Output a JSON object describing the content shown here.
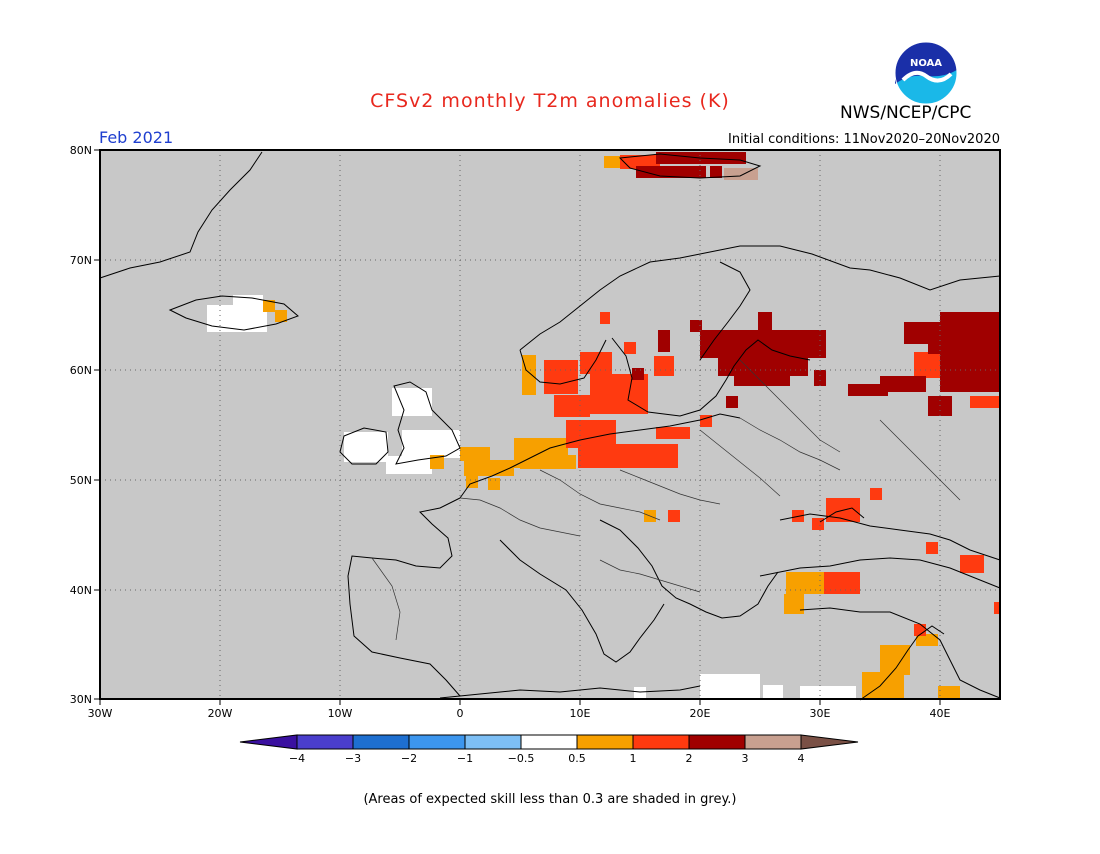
{
  "header": {
    "title": "CFSv2 monthly T2m anomalies (K)",
    "org": "NWS/NCEP/CPC",
    "logo_text": "NOAA",
    "valid_month": "Feb 2021",
    "initial_conditions": "Initial conditions: 11Nov2020–20Nov2020"
  },
  "map": {
    "lon_range": [
      -30,
      45
    ],
    "lat_range": [
      30,
      80
    ],
    "lat_labels": [
      "80N",
      "70N",
      "60N",
      "50N",
      "40N",
      "30N"
    ],
    "lon_labels": [
      "30W",
      "20W",
      "10W",
      "0",
      "10E",
      "20E",
      "30E",
      "40E"
    ],
    "background_color": "#c8c8c8",
    "grid": true
  },
  "colorbar": {
    "ticks": [
      "−4",
      "−3",
      "−2",
      "−1",
      "−0.5",
      "0.5",
      "1",
      "2",
      "3",
      "4"
    ],
    "colors": [
      "#3a10a0",
      "#4a3ecc",
      "#1e6fd0",
      "#3c96ee",
      "#7dbff5",
      "#ffffff",
      "#f7a000",
      "#ff3a10",
      "#a00000",
      "#c8a090",
      "#7a5045"
    ]
  },
  "footnote": "(Areas of expected skill less than 0.3 are shaded in grey.)"
}
